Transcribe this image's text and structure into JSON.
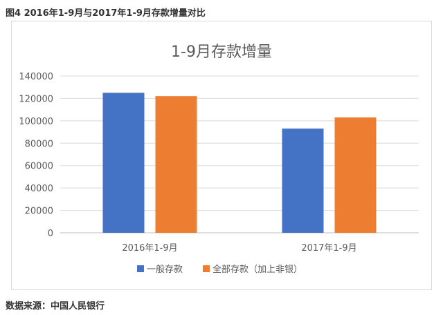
{
  "figure_title": "图4 2016年1-9月与2017年1-9月存款增量对比",
  "source_note": "数据来源：中国人民银行",
  "chart_data": {
    "type": "bar",
    "title": "1-9月存款增量",
    "categories": [
      "2016年1-9月",
      "2017年1-9月"
    ],
    "series": [
      {
        "name": "一般存款",
        "color": "#4472c4",
        "values": [
          125000,
          93000
        ]
      },
      {
        "name": "全部存款（加上非银）",
        "color": "#ed7d31",
        "values": [
          122000,
          103000
        ]
      }
    ],
    "yticks": [
      "0",
      "20000",
      "40000",
      "60000",
      "80000",
      "100000",
      "120000",
      "140000"
    ],
    "ylim": [
      0,
      140000
    ],
    "grid": true,
    "legend_position": "bottom"
  }
}
